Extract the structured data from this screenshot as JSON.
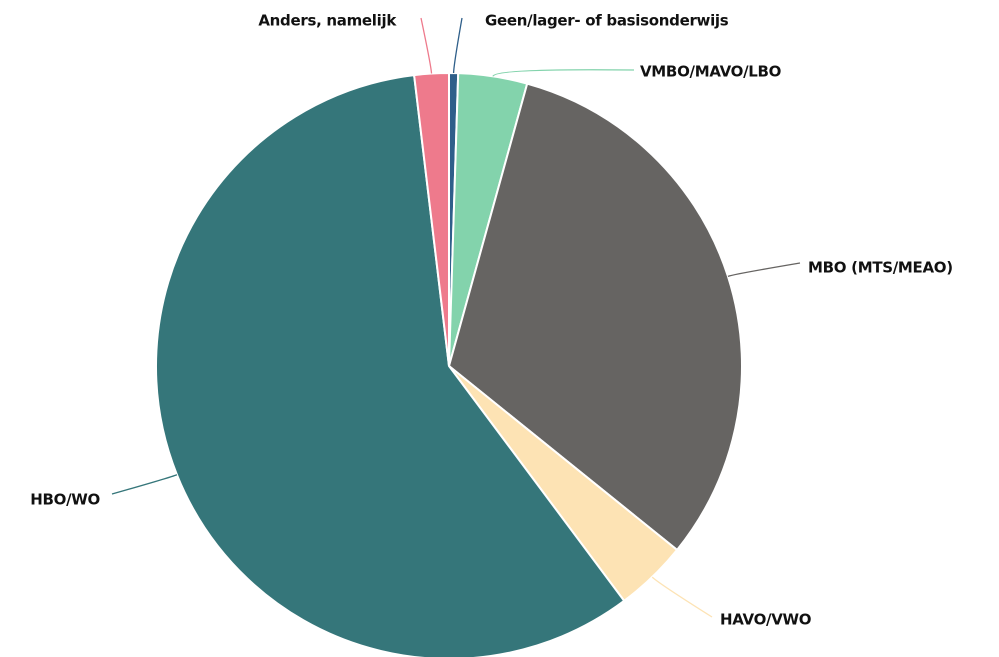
{
  "chart_data": {
    "type": "pie",
    "categories": [
      "Geen/lager- of basisonderwijs",
      "VMBO/MAVO/LBO",
      "MBO (MTS/MEAO)",
      "HAVO/VWO",
      "HBO/WO",
      "Anders, namelijk"
    ],
    "values": [
      0.5,
      3.8,
      31.5,
      4,
      58.3,
      1.9
    ],
    "colors": [
      "#2f5f8a",
      "#83d3ac",
      "#666462",
      "#fde3b4",
      "#35767a",
      "#ee7a8c"
    ]
  }
}
